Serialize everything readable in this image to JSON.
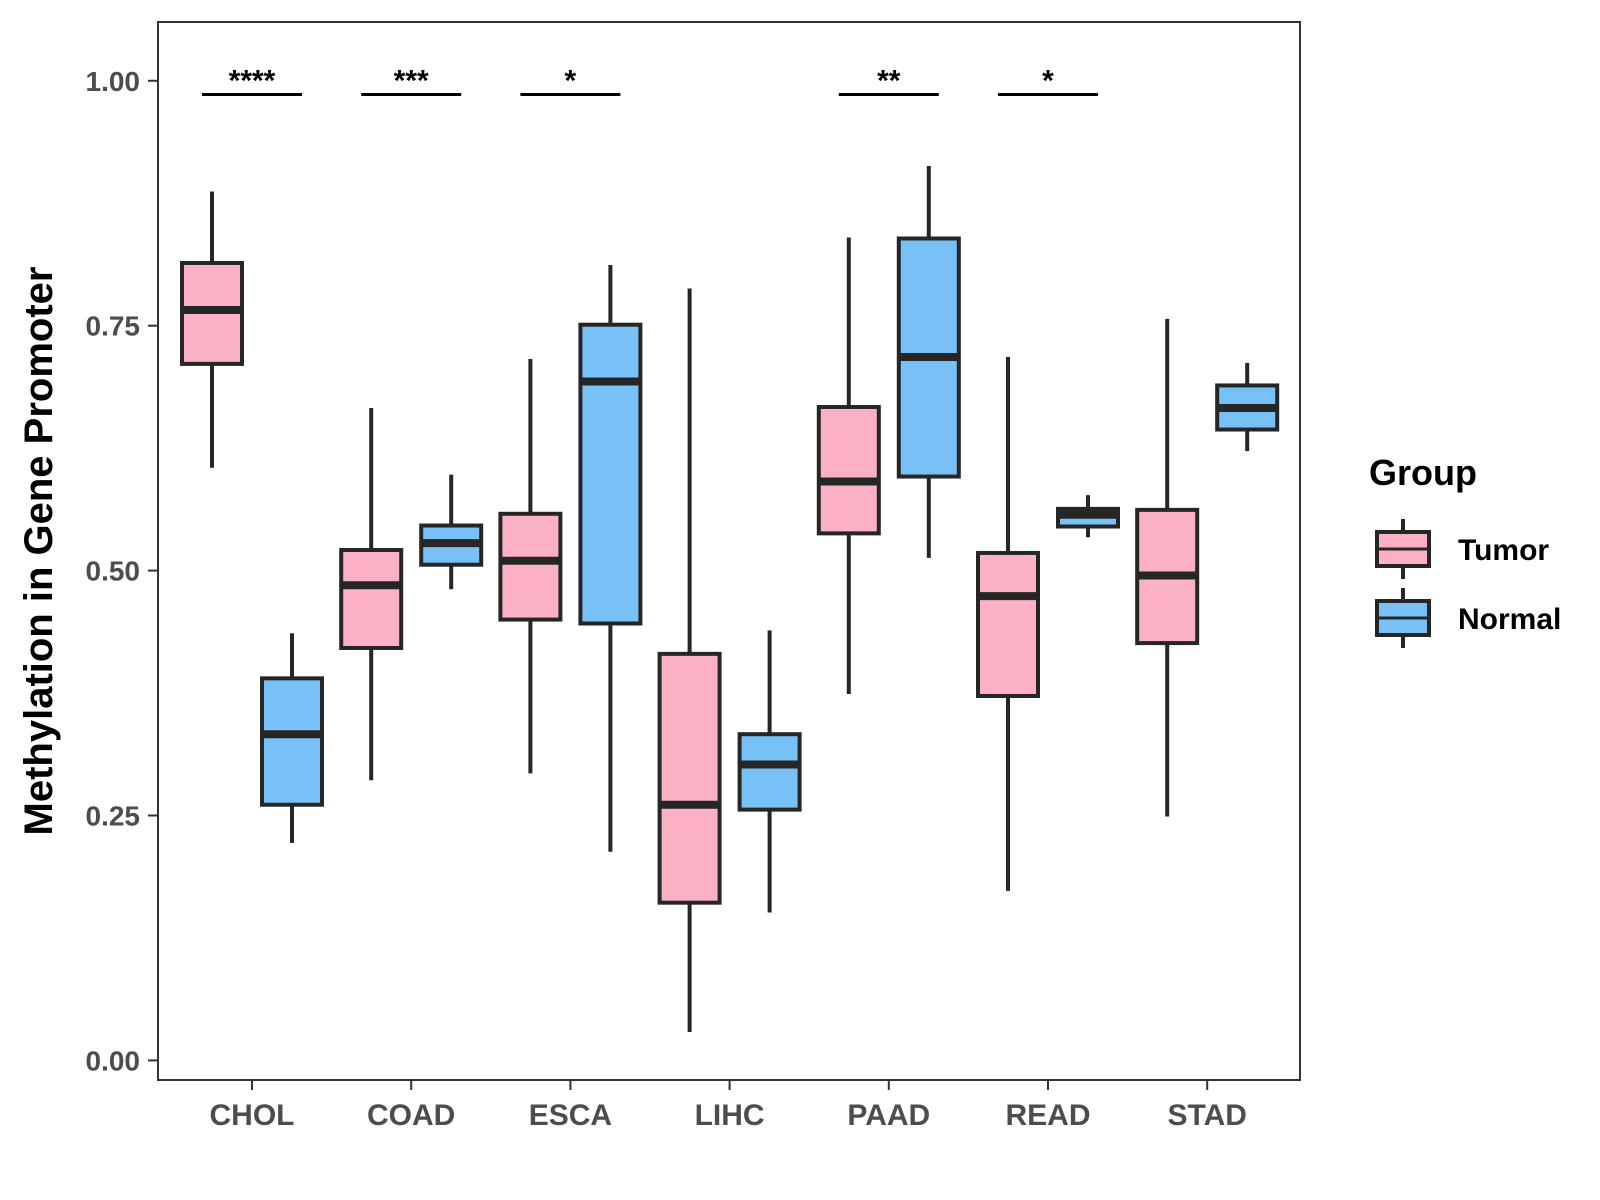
{
  "chart_data": {
    "type": "boxplot",
    "title": "",
    "xlabel": "",
    "ylabel": "Methylation in Gene Promoter",
    "ylim": [
      -0.02,
      1.06
    ],
    "yticks": [
      0.0,
      0.25,
      0.5,
      0.75,
      1.0
    ],
    "ytick_labels": [
      "0.00",
      "0.25",
      "0.50",
      "0.75",
      "1.00"
    ],
    "grid": false,
    "categories": [
      "CHOL",
      "COAD",
      "ESCA",
      "LIHC",
      "PAAD",
      "READ",
      "STAD"
    ],
    "series": [
      {
        "name": "Tumor",
        "color": "#FBB0C3",
        "boxes": [
          {
            "min": 0.605,
            "q1": 0.711,
            "median": 0.766,
            "q3": 0.814,
            "max": 0.887
          },
          {
            "min": 0.286,
            "q1": 0.421,
            "median": 0.485,
            "q3": 0.521,
            "max": 0.666
          },
          {
            "min": 0.293,
            "q1": 0.45,
            "median": 0.51,
            "q3": 0.558,
            "max": 0.716
          },
          {
            "min": 0.029,
            "q1": 0.161,
            "median": 0.261,
            "q3": 0.415,
            "max": 0.788
          },
          {
            "min": 0.374,
            "q1": 0.538,
            "median": 0.591,
            "q3": 0.667,
            "max": 0.84
          },
          {
            "min": 0.173,
            "q1": 0.372,
            "median": 0.474,
            "q3": 0.518,
            "max": 0.718
          },
          {
            "min": 0.249,
            "q1": 0.426,
            "median": 0.495,
            "q3": 0.562,
            "max": 0.757
          }
        ]
      },
      {
        "name": "Normal",
        "color": "#77C1F7",
        "boxes": [
          {
            "min": 0.222,
            "q1": 0.261,
            "median": 0.333,
            "q3": 0.39,
            "max": 0.436
          },
          {
            "min": 0.481,
            "q1": 0.506,
            "median": 0.528,
            "q3": 0.546,
            "max": 0.598
          },
          {
            "min": 0.213,
            "q1": 0.446,
            "median": 0.693,
            "q3": 0.751,
            "max": 0.812
          },
          {
            "min": 0.151,
            "q1": 0.256,
            "median": 0.302,
            "q3": 0.333,
            "max": 0.439
          },
          {
            "min": 0.513,
            "q1": 0.596,
            "median": 0.718,
            "q3": 0.839,
            "max": 0.913
          },
          {
            "min": 0.534,
            "q1": 0.545,
            "median": 0.557,
            "q3": 0.563,
            "max": 0.577
          },
          {
            "min": 0.622,
            "q1": 0.644,
            "median": 0.666,
            "q3": 0.689,
            "max": 0.712
          }
        ]
      }
    ],
    "significance": [
      {
        "category": "CHOL",
        "label": "****",
        "y": 0.986
      },
      {
        "category": "COAD",
        "label": "***",
        "y": 0.986
      },
      {
        "category": "ESCA",
        "label": "*",
        "y": 0.986
      },
      {
        "category": "PAAD",
        "label": "**",
        "y": 0.986
      },
      {
        "category": "READ",
        "label": "*",
        "y": 0.986
      }
    ],
    "legend": {
      "title": "Group",
      "position": "right",
      "entries": [
        "Tumor",
        "Normal"
      ]
    }
  }
}
